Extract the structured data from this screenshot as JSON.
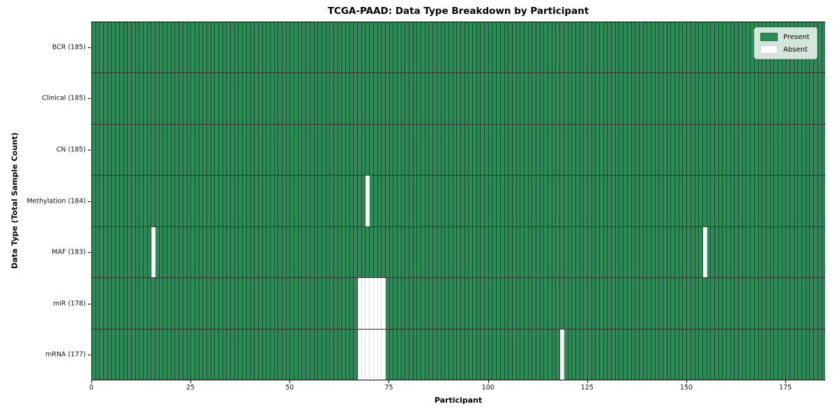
{
  "chart_data": {
    "type": "heatmap",
    "title": "TCGA-PAAD: Data Type Breakdown by Participant",
    "xlabel": "Participant",
    "ylabel": "Data Type (Total Sample Count)",
    "x_ticks": [
      0,
      25,
      50,
      75,
      100,
      125,
      150,
      175
    ],
    "x_range": [
      0,
      185
    ],
    "n_participants": 185,
    "grid": "cell-edges",
    "legend_position": "upper-right",
    "legend": [
      {
        "label": "Present",
        "color": "#2e8b57"
      },
      {
        "label": "Absent",
        "color": "#ffffff"
      }
    ],
    "colors": {
      "present": "#2e8b57",
      "absent": "#ffffff"
    },
    "rows": [
      {
        "label": "BCR (185)",
        "data_type": "BCR",
        "total": 185,
        "absent_participants": []
      },
      {
        "label": "Clinical (185)",
        "data_type": "Clinical",
        "total": 185,
        "absent_participants": []
      },
      {
        "label": "CN (185)",
        "data_type": "CN",
        "total": 185,
        "absent_participants": []
      },
      {
        "label": "Methylation (184)",
        "data_type": "Methylation",
        "total": 184,
        "absent_participants": [
          69
        ]
      },
      {
        "label": "MAF (183)",
        "data_type": "MAF",
        "total": 183,
        "absent_participants": [
          15,
          154
        ]
      },
      {
        "label": "miR (178)",
        "data_type": "miR",
        "total": 178,
        "absent_participants": [
          67,
          68,
          69,
          70,
          71,
          72,
          73
        ]
      },
      {
        "label": "mRNA (177)",
        "data_type": "mRNA",
        "total": 177,
        "absent_participants": [
          67,
          68,
          69,
          70,
          71,
          72,
          73,
          118
        ]
      }
    ]
  }
}
